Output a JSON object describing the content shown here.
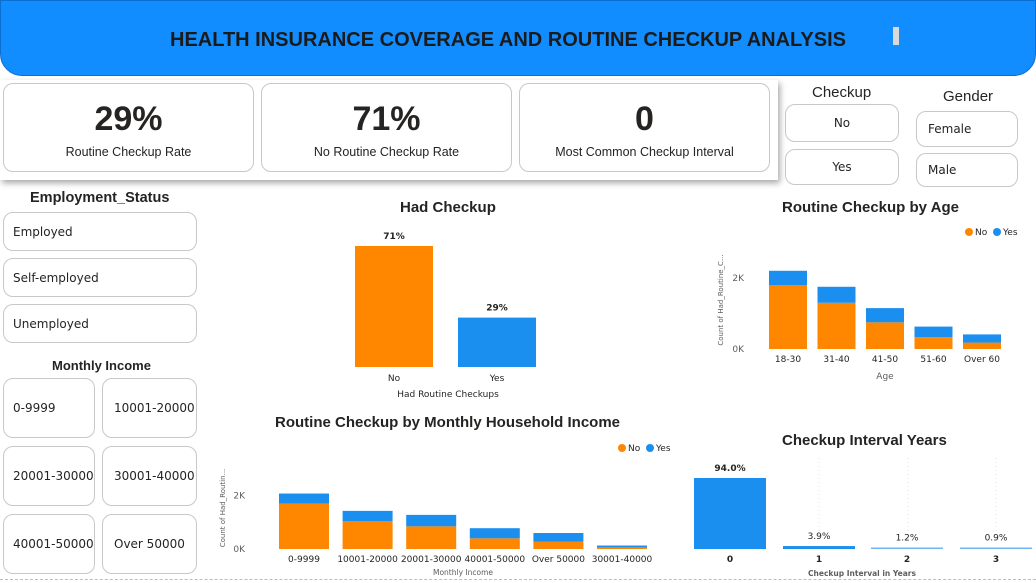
{
  "header": {
    "title": "HEALTH INSURANCE COVERAGE AND ROUTINE CHECKUP ANALYSIS"
  },
  "kpis": [
    {
      "value": "29%",
      "label": "Routine Checkup Rate"
    },
    {
      "value": "71%",
      "label": "No Routine Checkup Rate"
    },
    {
      "value": "0",
      "label": "Most Common Checkup Interval"
    }
  ],
  "checkup_slicer": {
    "title": "Checkup",
    "options": [
      "No",
      "Yes"
    ]
  },
  "gender_slicer": {
    "title": "Gender",
    "options": [
      "Female",
      "Male"
    ]
  },
  "employment_slicer": {
    "title": "Employment_Status",
    "options": [
      "Employed",
      "Self-employed",
      "Unemployed"
    ]
  },
  "income_slicer": {
    "title": "Monthly Income",
    "options": [
      "0-9999",
      "10001-20000",
      "20001-30000",
      "30001-40000",
      "40001-50000",
      "Over 50000"
    ]
  },
  "colors": {
    "no": "#FF8700",
    "yes": "#1B8FEF",
    "header": "#118DFF"
  },
  "chart_data": [
    {
      "id": "had_checkup",
      "type": "bar",
      "title": "Had Checkup",
      "categories": [
        "No",
        "Yes"
      ],
      "values": [
        71,
        29
      ],
      "data_labels": [
        "71%",
        "29%"
      ],
      "xlabel": "Had Routine Checkups",
      "ylabel": "",
      "colors": [
        "#FF8700",
        "#1B8FEF"
      ]
    },
    {
      "id": "checkup_by_age",
      "type": "bar",
      "stacked": true,
      "title": "Routine Checkup by Age",
      "categories": [
        "18-30",
        "31-40",
        "41-50",
        "51-60",
        "Over 60"
      ],
      "series": [
        {
          "name": "No",
          "values": [
            1800,
            1300,
            750,
            330,
            180
          ]
        },
        {
          "name": "Yes",
          "values": [
            400,
            450,
            400,
            300,
            230
          ]
        }
      ],
      "xlabel": "Age",
      "ylabel": "Count of Had_Routine_C...",
      "yticks": [
        "0K",
        "2K"
      ],
      "ylim": [
        0,
        2700
      ],
      "legend": "top-right"
    },
    {
      "id": "checkup_by_income",
      "type": "bar",
      "stacked": true,
      "title": "Routine Checkup by Monthly Household Income",
      "categories": [
        "0-9999",
        "10001-20000",
        "20001-30000",
        "40001-50000",
        "Over 50000",
        "30001-40000"
      ],
      "series": [
        {
          "name": "No",
          "values": [
            1700,
            1050,
            850,
            400,
            270,
            60
          ]
        },
        {
          "name": "Yes",
          "values": [
            380,
            380,
            430,
            380,
            330,
            70
          ]
        }
      ],
      "xlabel": "Monthly Income",
      "ylabel": "Count of Had_Routin...",
      "yticks": [
        "0K",
        "2K"
      ],
      "ylim": [
        0,
        2700
      ],
      "legend": "top-right"
    },
    {
      "id": "checkup_interval",
      "type": "bar",
      "title": "Checkup Interval Years",
      "categories": [
        "0",
        "1",
        "2",
        "3"
      ],
      "values": [
        94.0,
        3.9,
        1.2,
        0.9
      ],
      "data_labels": [
        "94.0%",
        "3.9%",
        "1.2%",
        "0.9%"
      ],
      "xlabel": "Checkup Interval in Years",
      "ylabel": "",
      "colors": [
        "#1B8FEF",
        "#1B8FEF",
        "#6FB6F5",
        "#6FB6F5"
      ]
    }
  ]
}
